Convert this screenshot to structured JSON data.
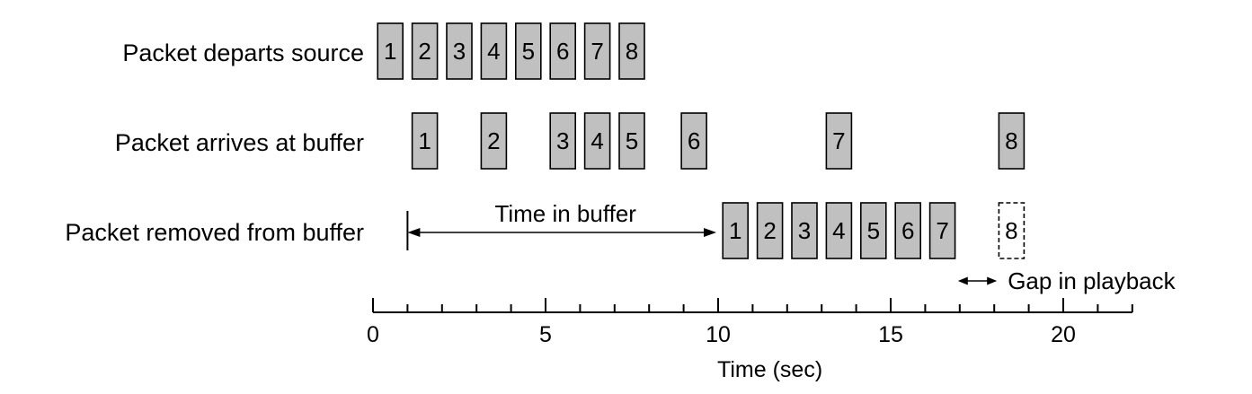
{
  "rows": [
    {
      "label": "Packet departs source",
      "packets": [
        {
          "n": "1",
          "t": 0.5
        },
        {
          "n": "2",
          "t": 1.5
        },
        {
          "n": "3",
          "t": 2.5
        },
        {
          "n": "4",
          "t": 3.5
        },
        {
          "n": "5",
          "t": 4.5
        },
        {
          "n": "6",
          "t": 5.5
        },
        {
          "n": "7",
          "t": 6.5
        },
        {
          "n": "8",
          "t": 7.5
        }
      ]
    },
    {
      "label": "Packet arrives at buffer",
      "packets": [
        {
          "n": "1",
          "t": 1.5
        },
        {
          "n": "2",
          "t": 3.5
        },
        {
          "n": "3",
          "t": 5.5
        },
        {
          "n": "4",
          "t": 6.5
        },
        {
          "n": "5",
          "t": 7.5
        },
        {
          "n": "6",
          "t": 9.3
        },
        {
          "n": "7",
          "t": 13.5
        },
        {
          "n": "8",
          "t": 18.5
        }
      ]
    },
    {
      "label": "Packet removed from buffer",
      "packets": [
        {
          "n": "1",
          "t": 10.5
        },
        {
          "n": "2",
          "t": 11.5
        },
        {
          "n": "3",
          "t": 12.5
        },
        {
          "n": "4",
          "t": 13.5
        },
        {
          "n": "5",
          "t": 14.5
        },
        {
          "n": "6",
          "t": 15.5
        },
        {
          "n": "7",
          "t": 16.5
        },
        {
          "n": "8",
          "t": 18.5,
          "missing": true
        }
      ]
    }
  ],
  "annotations": {
    "time_in_buffer": "Time in buffer",
    "gap_in_playback": "Gap in playback"
  },
  "axis": {
    "label": "Time (sec)",
    "min": 0,
    "max": 22,
    "major_ticks": [
      0,
      5,
      10,
      15,
      20
    ]
  },
  "colors": {
    "packet_fill": "#c0c0c0",
    "stroke": "#000000",
    "missing_fill": "#ffffff"
  }
}
